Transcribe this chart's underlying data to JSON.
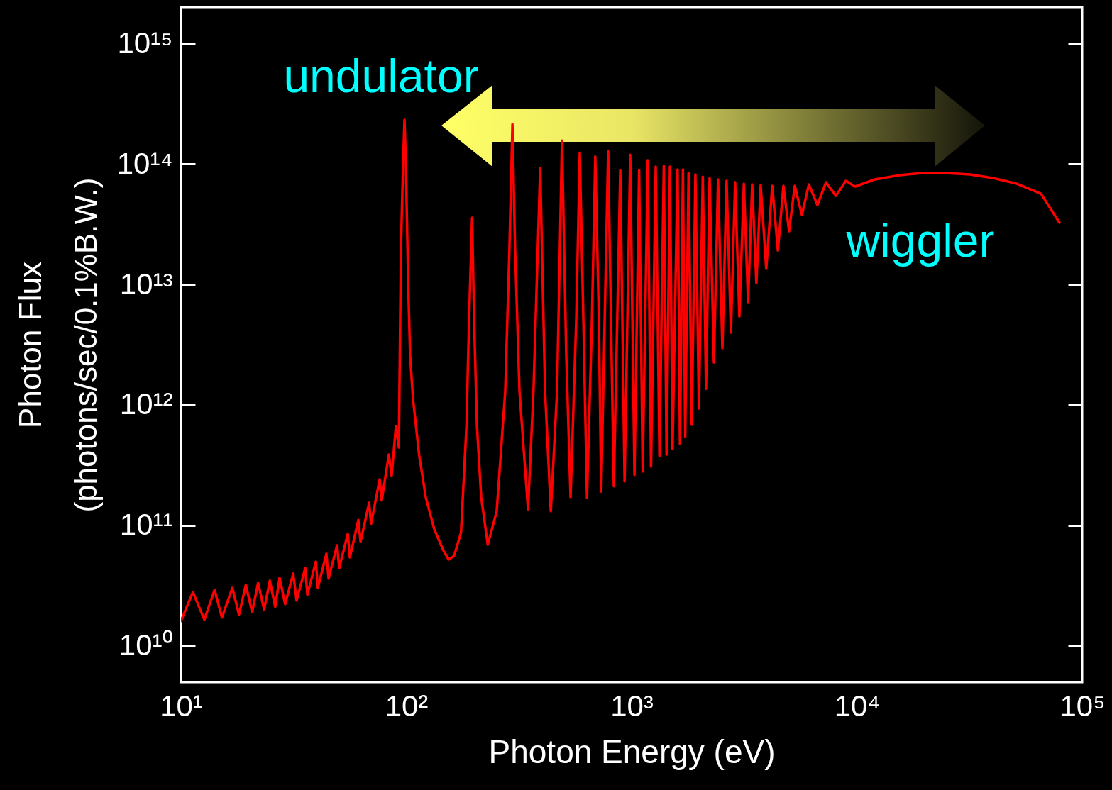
{
  "chart_data": {
    "type": "line",
    "xlabel": "Photon Energy (eV)",
    "ylabel": "Photon Flux\n(photons/sec/0.1%B.W.)",
    "annotations": [
      "undulator",
      "wiggler"
    ],
    "log": "xy",
    "line_style": "solid",
    "xlim": [
      10,
      100000
    ],
    "ylim": [
      5000000000.0,
      2000000000000000.0
    ],
    "xticks": [
      {
        "value": 10,
        "label": "10¹"
      },
      {
        "value": 100,
        "label": "10²"
      },
      {
        "value": 1000,
        "label": "10³"
      },
      {
        "value": 10000,
        "label": "10⁴"
      },
      {
        "value": 100000,
        "label": "10⁵"
      }
    ],
    "yticks": [
      {
        "value": 10000000000.0,
        "label": "10¹⁰"
      },
      {
        "value": 100000000000.0,
        "label": "10¹¹"
      },
      {
        "value": 1000000000000.0,
        "label": "10¹²"
      },
      {
        "value": 10000000000000.0,
        "label": "10¹³"
      },
      {
        "value": 100000000000000.0,
        "label": "10¹⁴"
      },
      {
        "value": 1000000000000000.0,
        "label": "10¹⁵"
      }
    ],
    "x": [
      10,
      11.3,
      12.7,
      14.1,
      15.2,
      16.9,
      18.1,
      19.4,
      20.7,
      22.0,
      23.4,
      24.8,
      26.2,
      27.4,
      29.0,
      31.5,
      32.6,
      35.6,
      36.4,
      39.7,
      40.5,
      44.2,
      45.2,
      49.3,
      50.4,
      55.0,
      56.2,
      61.3,
      62.7,
      68.4,
      69.8,
      76.2,
      77.8,
      83.7,
      86.1,
      90.0,
      92.7,
      94.7,
      96.8,
      98.2,
      99.6,
      102,
      104,
      107,
      114,
      122,
      133,
      146,
      154,
      163,
      175,
      185,
      190,
      196,
      200,
      206,
      215,
      230,
      252,
      275,
      287,
      296,
      304,
      318,
      347,
      367,
      393,
      413,
      438,
      467,
      491,
      513,
      536,
      568,
      589,
      611,
      634,
      667,
      690,
      716,
      733,
      787,
      834,
      891,
      931,
      986,
      1030,
      1080,
      1120,
      1180,
      1220,
      1280,
      1330,
      1390,
      1430,
      1480,
      1520,
      1600,
      1640,
      1690,
      1730,
      1790,
      1850,
      1920,
      1990,
      2070,
      2140,
      2220,
      2320,
      2420,
      2530,
      2640,
      2760,
      2880,
      3010,
      3150,
      3290,
      3430,
      3580,
      3740,
      3960,
      4210,
      4460,
      4720,
      5000,
      5300,
      5700,
      6120,
      6680,
      7290,
      8070,
      8930,
      9820,
      12000,
      15400,
      19500,
      24800,
      31800,
      40400,
      51300,
      65600,
      79300
    ],
    "series": [
      {
        "color": "#ff0000",
        "values": [
          16100000000.0,
          28000000000.0,
          16500000000.0,
          29200000000.0,
          17200000000.0,
          30300000000.0,
          18200000000.0,
          32100000000.0,
          19100000000.0,
          33400000000.0,
          20000000000.0,
          34800000000.0,
          21100000000.0,
          36700000000.0,
          22200000000.0,
          39800000000.0,
          23800000000.0,
          44400000000.0,
          26500000000.0,
          50100000000.0,
          30300000000.0,
          58200000000.0,
          36200000000.0,
          68400000000.0,
          44400000000.0,
          85000000000.0,
          54300000000.0,
          111000000000.0,
          73200000000.0,
          154000000000.0,
          103000000000.0,
          241000000000.0,
          161000000000.0,
          387000000000.0,
          258000000000.0,
          666000000000.0,
          444000000000.0,
          19700000000000.0,
          100000000000000.0,
          232000000000000.0,
          100000000000000.0,
          10000000000000.0,
          2580000000000.0,
          1150000000000.0,
          387000000000.0,
          172000000000.0,
          93500000000.0,
          62200000000.0,
          52200000000.0,
          55800000000.0,
          87300000000.0,
          666000000000.0,
          5080000000000.0,
          35700000000000.0,
          5080000000000.0,
          666000000000.0,
          172000000000.0,
          69300000000.0,
          131000000000.0,
          1310000000000.0,
          19700000000000.0,
          213000000000000.0,
          19700000000000.0,
          1310000000000.0,
          136000000000.0,
          1310000000000.0,
          92300000000000.0,
          1310000000000.0,
          131000000000.0,
          1310000000000.0,
          156000000000000.0,
          2580000000000.0,
          172000000000.0,
          5080000000000.0,
          124000000000000.0,
          5080000000000.0,
          169000000000.0,
          5080000000000.0,
          115000000000000.0,
          5080000000000.0,
          191000000000.0,
          128000000000000.0,
          211000000000.0,
          88600000000000.0,
          232000000000.0,
          119000000000000.0,
          262000000000.0,
          88600000000000.0,
          280000000000.0,
          107000000000000.0,
          308000000000.0,
          94700000000000.0,
          377000000000.0,
          96000000000000.0,
          387000000000.0,
          94700000000000.0,
          432000000000.0,
          89700000000000.0,
          475000000000.0,
          89700000000000.0,
          543000000000.0,
          83900000000000.0,
          684000000000.0,
          81700000000000.0,
          935000000000.0,
          78300000000000.0,
          1360000000000.0,
          76200000000000.0,
          2250000000000.0,
          74300000000000.0,
          2960000000000.0,
          72300000000000.0,
          3980000000000.0,
          70300000000000.0,
          5430000000000.0,
          68400000000000.0,
          7130000000000.0,
          67500000000000.0,
          10300000000000.0,
          66700000000000.0,
          13500000000000.0,
          65800000000000.0,
          19100000000000.0,
          65800000000000.0,
          27600000000000.0,
          65800000000000.0,
          37700000000000.0,
          67500000000000.0,
          45600000000000.0,
          70300000000000.0,
          54300000000000.0,
          72300000000000.0,
          64900000000000.0,
          74300000000000.0,
          80500000000000.0,
          83900000000000.0,
          83900000000000.0,
          81700000000000.0,
          76200000000000.0,
          68400000000000.0,
          56600000000000.0,
          32500000000000.0
        ]
      }
    ]
  }
}
